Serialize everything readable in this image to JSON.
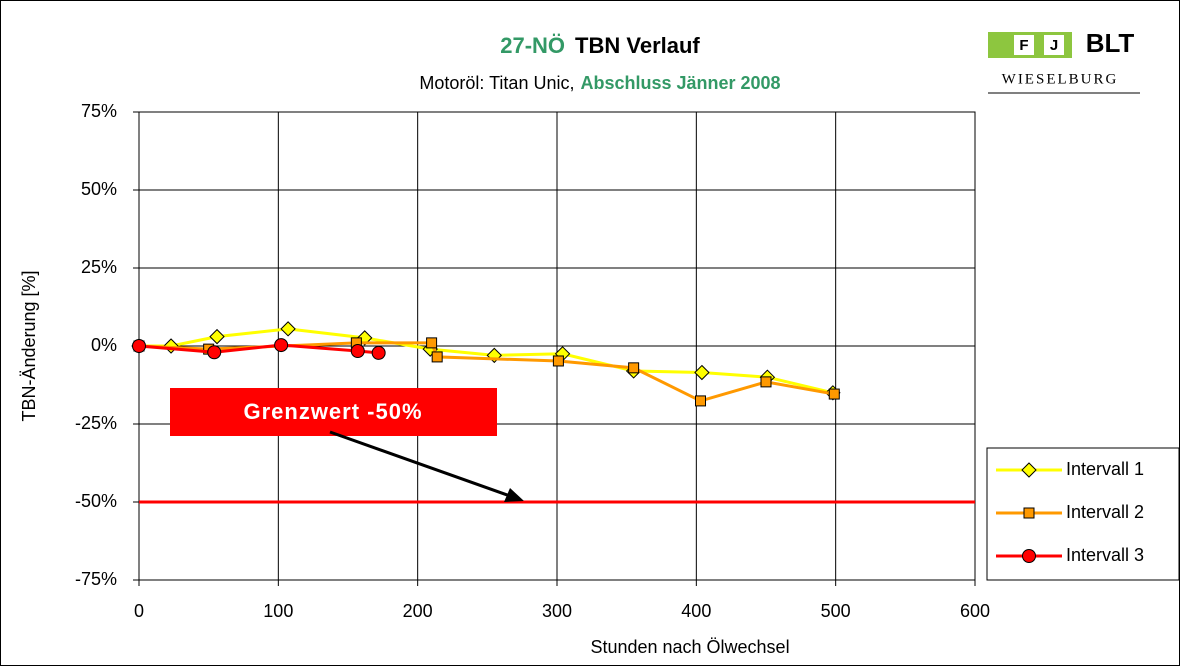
{
  "chart_data": {
    "type": "line",
    "title": {
      "code": "27-NÖ",
      "text": "TBN Verlauf"
    },
    "subtitle": {
      "text": "Motoröl: Titan Unic,",
      "highlight": "Abschluss Jänner 2008"
    },
    "logo": {
      "letters": [
        "F",
        "J"
      ],
      "name": "BLT",
      "place": "WIESELBURG"
    },
    "x_label": "Stunden nach Ölwechsel",
    "y_label": "TBN-Änderung [%]",
    "xlim": [
      0,
      600
    ],
    "xticks": [
      0,
      100,
      200,
      300,
      400,
      500,
      600
    ],
    "ylim": [
      -75,
      75
    ],
    "yticks": [
      {
        "value": -75,
        "label": "-75%"
      },
      {
        "value": -50,
        "label": "-50%"
      },
      {
        "value": -25,
        "label": "-25%"
      },
      {
        "value": 0,
        "label": "0%"
      },
      {
        "value": 25,
        "label": "25%"
      },
      {
        "value": 50,
        "label": "50%"
      },
      {
        "value": 75,
        "label": "75%"
      }
    ],
    "grid": true,
    "limit": {
      "value": -50,
      "label": "Grenzwert -50%",
      "color": "#ff0000"
    },
    "legend": "lower right",
    "series": [
      {
        "name": "Intervall 1",
        "color": "#ffff00",
        "marker": "diamond",
        "x": [
          0,
          23,
          56,
          107,
          162,
          209,
          255,
          304,
          355,
          404,
          451,
          498
        ],
        "values": [
          0,
          0,
          3,
          5.5,
          2.6,
          -1,
          -3,
          -2.5,
          -8,
          -8.5,
          -10,
          -15
        ]
      },
      {
        "name": "Intervall 2",
        "color": "#ff9900",
        "marker": "square",
        "x": [
          0,
          50,
          156,
          210,
          214,
          301,
          355,
          403,
          450,
          499
        ],
        "values": [
          0,
          -1,
          1,
          1,
          -3.5,
          -4.8,
          -7,
          -17.6,
          -11.5,
          -15.4
        ]
      },
      {
        "name": "Intervall 3",
        "color": "#ff0000",
        "marker": "circle",
        "x": [
          0,
          54,
          102,
          157,
          172
        ],
        "values": [
          0,
          -2,
          0.3,
          -1.6,
          -2.2
        ]
      }
    ]
  }
}
